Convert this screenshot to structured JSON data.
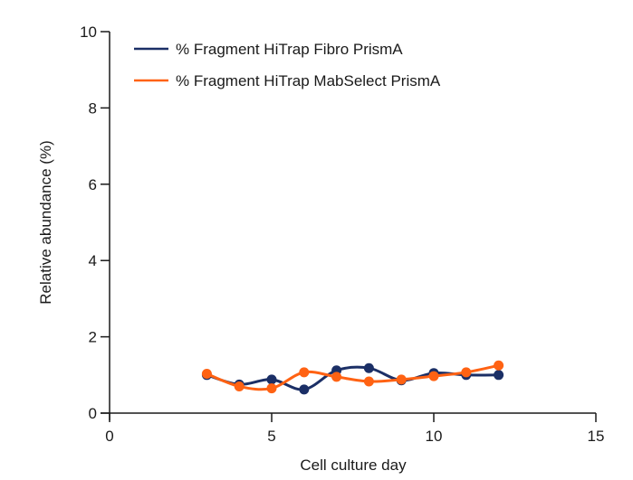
{
  "colors": {
    "series_fibro": "#1b2f66",
    "series_mabselect": "#ff6213",
    "axis": "#1a1a1a",
    "background": "#ffffff"
  },
  "chart_data": {
    "type": "line",
    "title": "",
    "xlabel": "Cell culture day",
    "ylabel": "Relative abundance (%)",
    "xlim": [
      0,
      15
    ],
    "ylim": [
      0,
      10
    ],
    "x_ticks": [
      0,
      5,
      10,
      15
    ],
    "y_ticks": [
      0,
      2,
      4,
      6,
      8,
      10
    ],
    "grid": false,
    "legend_position": "top-left, inside",
    "smoothed_lines": true,
    "markers": "filled circles",
    "x": [
      3,
      4,
      5,
      6,
      7,
      8,
      9,
      10,
      11,
      12
    ],
    "series": [
      {
        "name": "% Fragment HiTrap Fibro PrismA",
        "color": "#1b2f66",
        "values": [
          1.0,
          0.75,
          0.88,
          0.62,
          1.12,
          1.18,
          0.86,
          1.05,
          1.0,
          1.0
        ]
      },
      {
        "name": "% Fragment HiTrap MabSelect PrismA",
        "color": "#ff6213",
        "values": [
          1.03,
          0.7,
          0.65,
          1.07,
          0.95,
          0.83,
          0.88,
          0.97,
          1.07,
          1.25
        ]
      }
    ]
  },
  "legend": {
    "items": [
      {
        "label": "% Fragment HiTrap Fibro PrismA"
      },
      {
        "label": "% Fragment HiTrap MabSelect PrismA"
      }
    ]
  }
}
